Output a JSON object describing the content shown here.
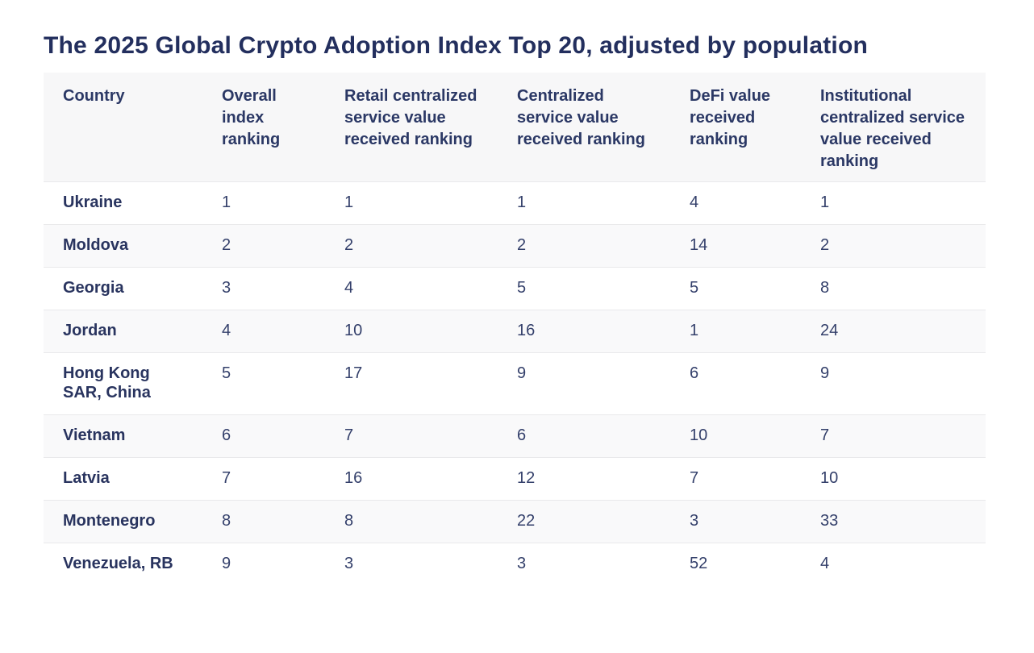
{
  "page": {
    "title": "The 2025 Global Crypto Adoption Index Top 20, adjusted by population"
  },
  "chart_data": {
    "type": "table",
    "title": "The 2025 Global Crypto Adoption Index Top 20, adjusted by population",
    "columns": [
      "Country",
      "Overall index ranking",
      "Retail centralized service value received ranking",
      "Centralized service value received ranking",
      "DeFi value received ranking",
      "Institutional centralized service value received ranking"
    ],
    "rows": [
      [
        "Ukraine",
        1,
        1,
        1,
        4,
        1
      ],
      [
        "Moldova",
        2,
        2,
        2,
        14,
        2
      ],
      [
        "Georgia",
        3,
        4,
        5,
        5,
        8
      ],
      [
        "Jordan",
        4,
        10,
        16,
        1,
        24
      ],
      [
        "Hong Kong SAR, China",
        5,
        17,
        9,
        6,
        9
      ],
      [
        "Vietnam",
        6,
        7,
        6,
        10,
        7
      ],
      [
        "Latvia",
        7,
        16,
        12,
        7,
        10
      ],
      [
        "Montenegro",
        8,
        8,
        22,
        3,
        33
      ],
      [
        "Venezuela, RB",
        9,
        3,
        3,
        52,
        4
      ]
    ],
    "layout": {
      "striped_rows": true,
      "header_background": true,
      "rows_visible": "last row partially cut off at bottom edge"
    }
  },
  "colors": {
    "title_text": "#232f5e",
    "header_text": "#2b3865",
    "country_text": "#29345f",
    "number_text": "#34406b",
    "header_bg": "#f7f7f8",
    "stripe_bg": "#f9f9fa",
    "row_border": "#e9e9eb",
    "page_bg": "#ffffff"
  }
}
